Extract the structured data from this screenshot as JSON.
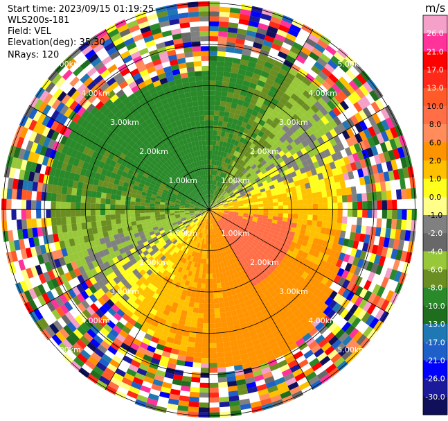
{
  "info": {
    "start_time": "Start time: 2023/09/15 01:19:25",
    "instrument": "WLS200s-181",
    "field": "Field: VEL",
    "elevation": "Elevation(deg): 35.30",
    "nrays": "NRays: 120"
  },
  "chart_data": {
    "type": "heatmap",
    "projection": "polar (PPI)",
    "field": "VEL",
    "units": "m/s",
    "range_rings_km": [
      1,
      2,
      3,
      4,
      5
    ],
    "ring_labels": [
      "1.00km",
      "2.00km",
      "3.00km",
      "4.00km",
      "5.00km"
    ],
    "colorbar": {
      "title": "m/s",
      "ticks": [
        "26.0",
        "21.0",
        "17.0",
        "13.0",
        "10.0",
        "8.0",
        "6.0",
        "2.0",
        "1.0",
        "0.0",
        "-1.0",
        "-2.0",
        "-4.0",
        "-6.0",
        "-8.0",
        "-10.0",
        "-13.0",
        "-17.0",
        "-21.0",
        "-26.0",
        "-30.0"
      ],
      "colors": [
        "#f5a0c8",
        "#ff3399",
        "#ff0000",
        "#ff2a1a",
        "#ff5a28",
        "#ff6e46",
        "#ff8c5a",
        "#ff9400",
        "#ffc000",
        "#ffff1e",
        "#ffff8a",
        "#808080",
        "#686868",
        "#98c83a",
        "#6b8e23",
        "#2a8a2a",
        "#1e6e1e",
        "#1f78b4",
        "#1e5fc8",
        "#0000ff",
        "#1a1a9a",
        "#10105a"
      ]
    }
  }
}
